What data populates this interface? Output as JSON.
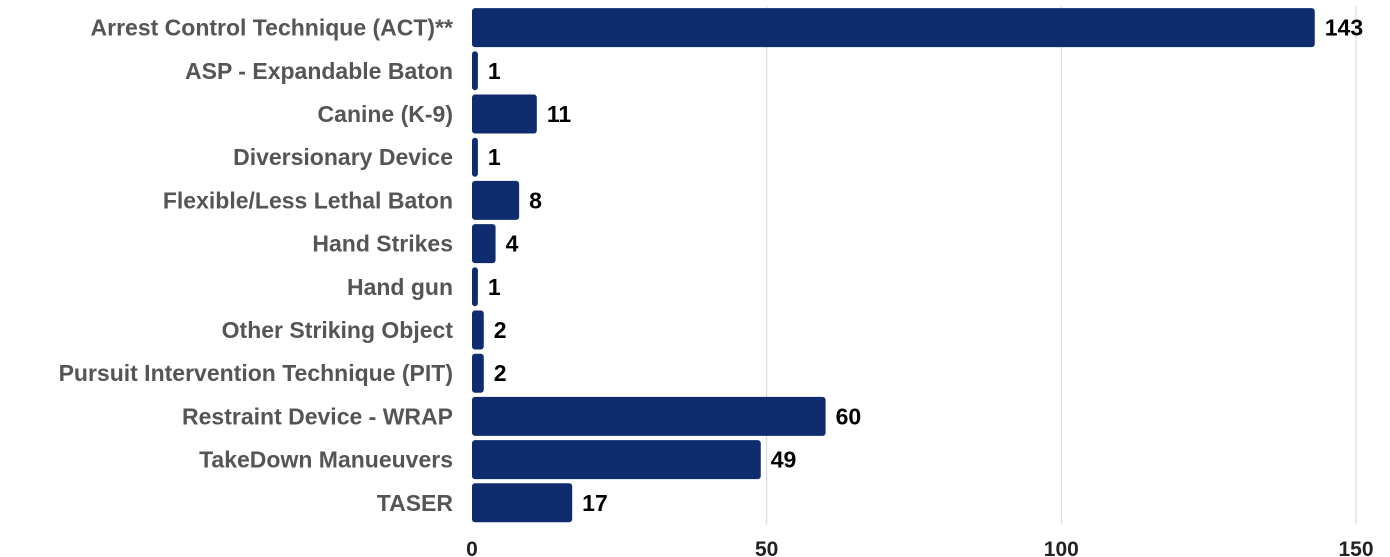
{
  "chart_data": {
    "type": "bar",
    "orientation": "horizontal",
    "categories": [
      "Arrest Control Technique (ACT)**",
      "ASP - Expandable Baton",
      "Canine (K-9)",
      "Diversionary Device",
      "Flexible/Less Lethal Baton",
      "Hand Strikes",
      "Hand gun",
      "Other Striking Object",
      "Pursuit Intervention Technique (PIT)",
      "Restraint Device - WRAP",
      "TakeDown Manueuvers",
      "TASER"
    ],
    "values": [
      143,
      1,
      11,
      1,
      8,
      4,
      1,
      2,
      2,
      60,
      49,
      17
    ],
    "value_labels": [
      "143",
      "1",
      "11",
      "1",
      "8",
      "4",
      "1",
      "2",
      "2",
      "60",
      "49",
      "17"
    ],
    "xlim": [
      0,
      150
    ],
    "xticks": [
      0,
      50,
      100,
      150
    ],
    "xtick_labels": [
      "0",
      "50",
      "100",
      "150"
    ],
    "grid": "vertical",
    "bar_color": "#0f2d6e",
    "title": "",
    "xlabel": "",
    "ylabel": ""
  }
}
